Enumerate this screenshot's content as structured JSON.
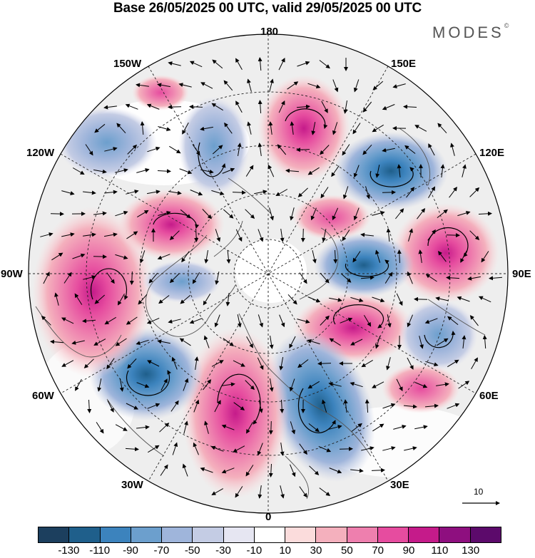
{
  "header": {
    "title": "Base 26/05/2025 00 UTC, valid 29/05/2025 00 UTC",
    "brand": "MODES",
    "brand_mark": "©"
  },
  "map": {
    "projection": "north-polar-stereographic",
    "longitude_labels": {
      "top": "180",
      "top_right": "150E",
      "right_upper": "120E",
      "right": "90E",
      "right_lower": "60E",
      "bottom_right": "30E",
      "bottom": "0",
      "bottom_left": "30W",
      "left_lower": "60W",
      "left": "90W",
      "left_upper": "120W",
      "top_left": "150W"
    },
    "reference_vector_label": "10",
    "anomaly_centers": [
      {
        "sign": "positive",
        "intensity": 90,
        "region": "near 180"
      },
      {
        "sign": "negative",
        "intensity": -90,
        "region": "120E"
      },
      {
        "sign": "positive",
        "intensity": 70,
        "region": "90E"
      },
      {
        "sign": "negative",
        "intensity": -70,
        "region": "east of pole"
      },
      {
        "sign": "positive",
        "intensity": 70,
        "region": "60E-90E"
      },
      {
        "sign": "negative",
        "intensity": -30,
        "region": "60E"
      },
      {
        "sign": "negative",
        "intensity": -110,
        "region": "30E"
      },
      {
        "sign": "positive",
        "intensity": 110,
        "region": "0-30W"
      },
      {
        "sign": "negative",
        "intensity": -110,
        "region": "60W"
      },
      {
        "sign": "positive",
        "intensity": 90,
        "region": "90W"
      },
      {
        "sign": "positive",
        "intensity": 70,
        "region": "120W-150W"
      },
      {
        "sign": "negative",
        "intensity": -50,
        "region": "150W"
      }
    ]
  },
  "colorbar": {
    "tick_labels": [
      "-130",
      "-110",
      "-90",
      "-70",
      "-50",
      "-30",
      "-10",
      "10",
      "30",
      "50",
      "70",
      "90",
      "110",
      "130"
    ],
    "colors": [
      "#1c3f5e",
      "#1f5f8b",
      "#3c83bd",
      "#6c9fcd",
      "#9fb5db",
      "#c4cce4",
      "#e6e6f2",
      "#ffffff",
      "#fbdcdc",
      "#f4b0bd",
      "#ee7fae",
      "#e64c9f",
      "#c51b8a",
      "#8e0f7f",
      "#5c0a6b"
    ]
  }
}
